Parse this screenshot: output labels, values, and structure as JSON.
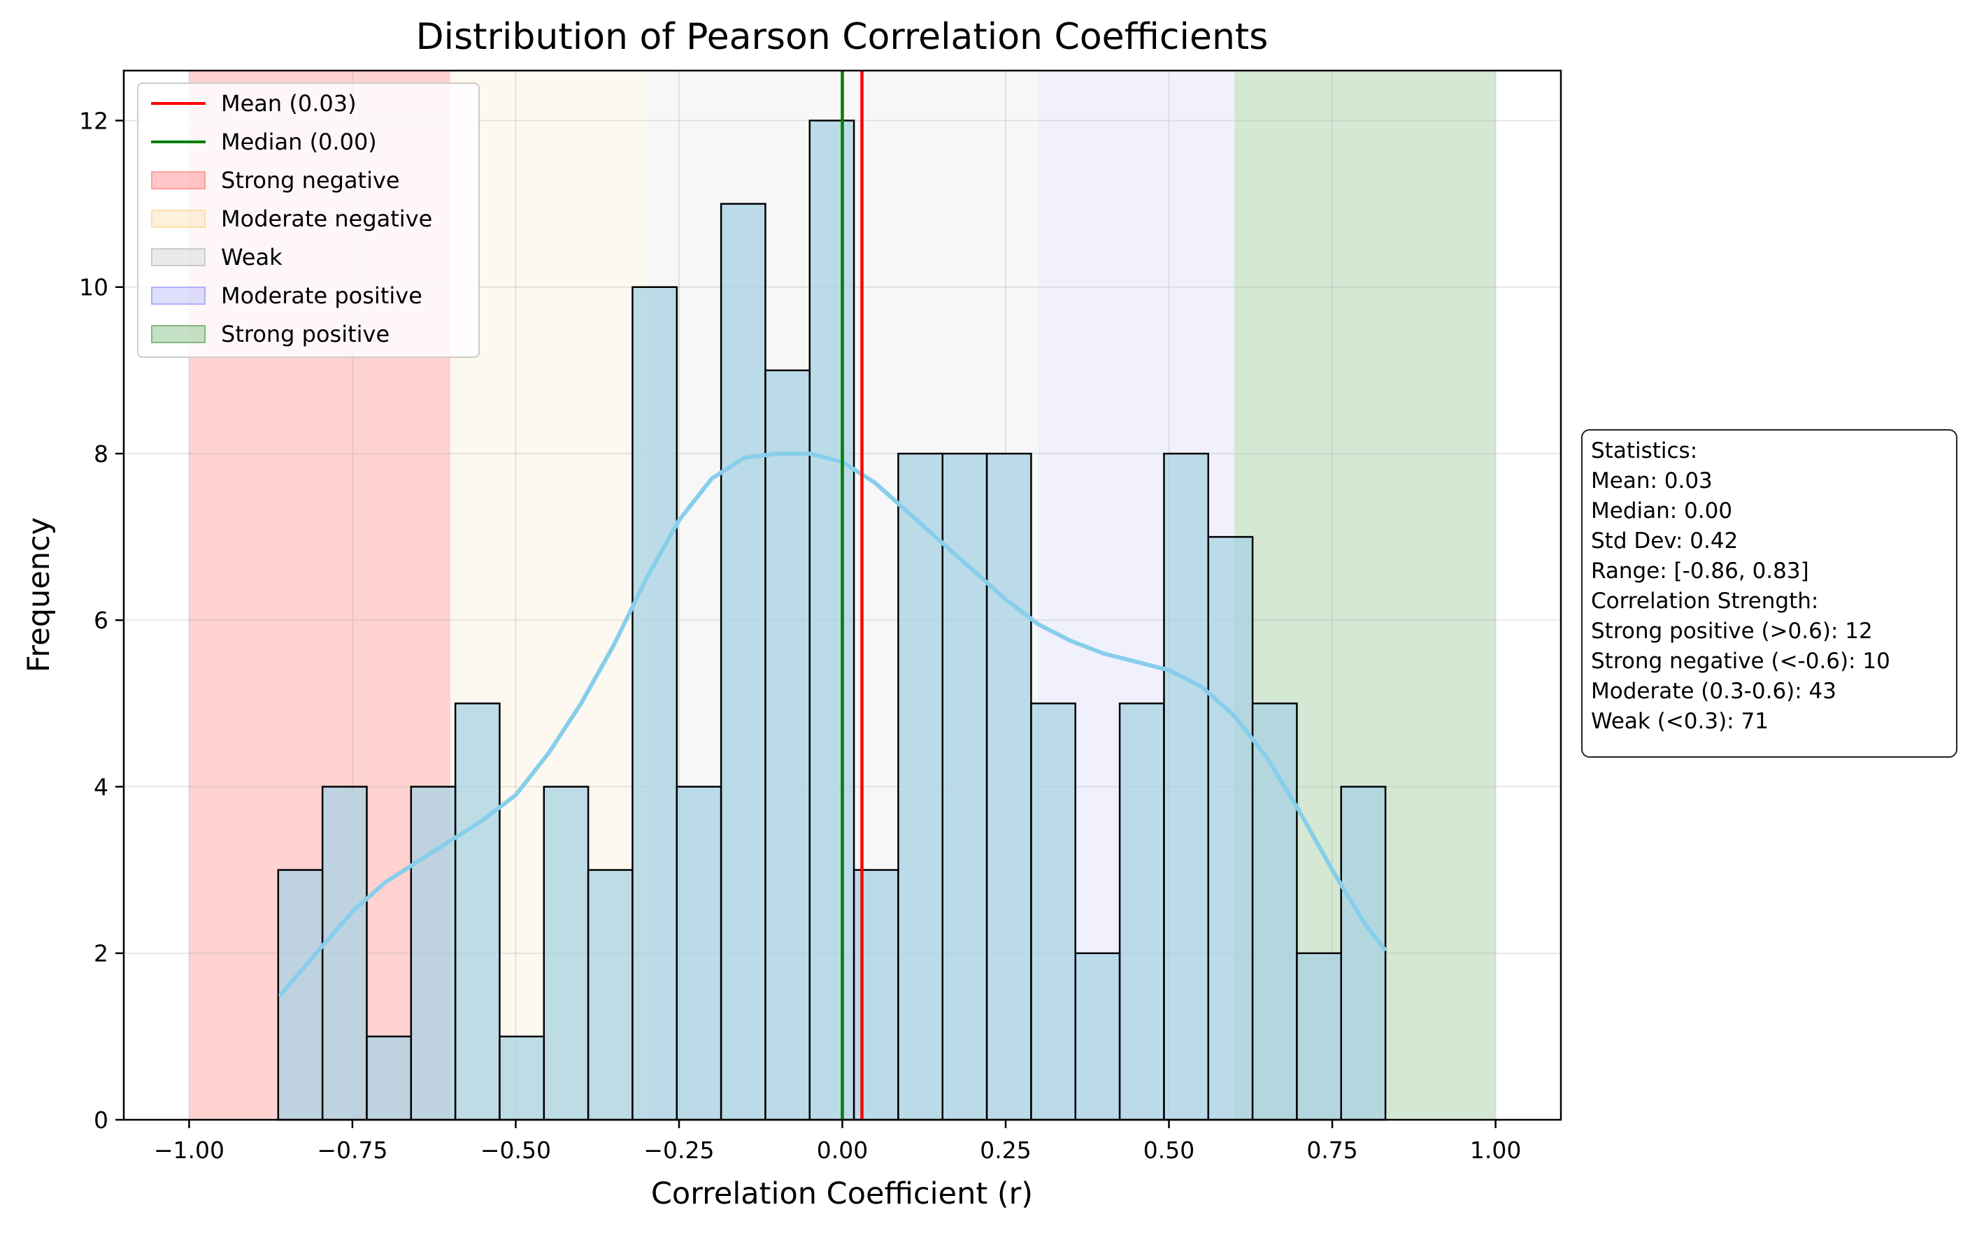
{
  "chart_data": {
    "type": "bar",
    "title": "Distribution of Pearson Correlation Coefficients",
    "xlabel": "Correlation Coefficient (r)",
    "ylabel": "Frequency",
    "xlim": [
      -1.1,
      1.1
    ],
    "ylim": [
      0,
      12.6
    ],
    "xticks": [
      "−1.00",
      "−0.75",
      "−0.50",
      "−0.25",
      "0.00",
      "0.25",
      "0.50",
      "0.75",
      "1.00"
    ],
    "xtick_values": [
      -1.0,
      -0.75,
      -0.5,
      -0.25,
      0.0,
      0.25,
      0.5,
      0.75,
      1.0
    ],
    "yticks": [
      "0",
      "2",
      "4",
      "6",
      "8",
      "10",
      "12"
    ],
    "ytick_values": [
      0,
      2,
      4,
      6,
      8,
      10,
      12
    ],
    "grid": true,
    "legend_position": "top-left",
    "histogram": {
      "bin_start": -0.8636,
      "bin_width": 0.0678,
      "counts": [
        3,
        4,
        1,
        4,
        5,
        1,
        4,
        3,
        10,
        4,
        11,
        9,
        12,
        3,
        8,
        8,
        8,
        5,
        2,
        5,
        8,
        7,
        5,
        2,
        4
      ],
      "fill_color": "#a8d1e3",
      "edge_color": "#000000"
    },
    "kde": {
      "color": "#87ceeb",
      "x": [
        -0.86,
        -0.8,
        -0.75,
        -0.7,
        -0.65,
        -0.6,
        -0.55,
        -0.5,
        -0.45,
        -0.4,
        -0.35,
        -0.3,
        -0.25,
        -0.2,
        -0.15,
        -0.1,
        -0.05,
        0.0,
        0.05,
        0.1,
        0.15,
        0.2,
        0.25,
        0.3,
        0.35,
        0.4,
        0.45,
        0.5,
        0.55,
        0.6,
        0.65,
        0.7,
        0.75,
        0.8,
        0.83
      ],
      "y": [
        1.5,
        2.05,
        2.5,
        2.85,
        3.1,
        3.35,
        3.6,
        3.9,
        4.4,
        5.0,
        5.7,
        6.5,
        7.2,
        7.7,
        7.95,
        8.0,
        8.0,
        7.9,
        7.65,
        7.3,
        6.95,
        6.6,
        6.25,
        5.95,
        5.75,
        5.6,
        5.5,
        5.4,
        5.2,
        4.85,
        4.35,
        3.7,
        3.0,
        2.35,
        2.05
      ]
    },
    "mean_line": {
      "label": "Mean (0.03)",
      "value": 0.03,
      "color": "#ff0000"
    },
    "median_line": {
      "label": "Median (0.00)",
      "value": 0.0,
      "color": "#008000"
    },
    "regions": [
      {
        "label": "Strong negative",
        "from": -1.0,
        "to": -0.6,
        "color": "#ff9999"
      },
      {
        "label": "Moderate negative",
        "from": -0.6,
        "to": -0.3,
        "color": "#fde8c4"
      },
      {
        "label": "Weak",
        "from": -0.3,
        "to": 0.3,
        "color": "#e3e3e3"
      },
      {
        "label": "Moderate positive",
        "from": 0.3,
        "to": 0.6,
        "color": "#c8c8fb"
      },
      {
        "label": "Strong positive",
        "from": 0.6,
        "to": 1.0,
        "color": "#9fcd9f"
      }
    ],
    "statistics_box": {
      "lines": [
        "Statistics:",
        "Mean: 0.03",
        "Median: 0.00",
        "Std Dev: 0.42",
        "Range: [-0.86, 0.83]",
        "",
        "Correlation Strength:",
        "Strong positive (>0.6): 12",
        "Strong negative (<-0.6): 10",
        "Moderate (0.3-0.6): 43",
        "Weak (<0.3): 71"
      ]
    }
  }
}
